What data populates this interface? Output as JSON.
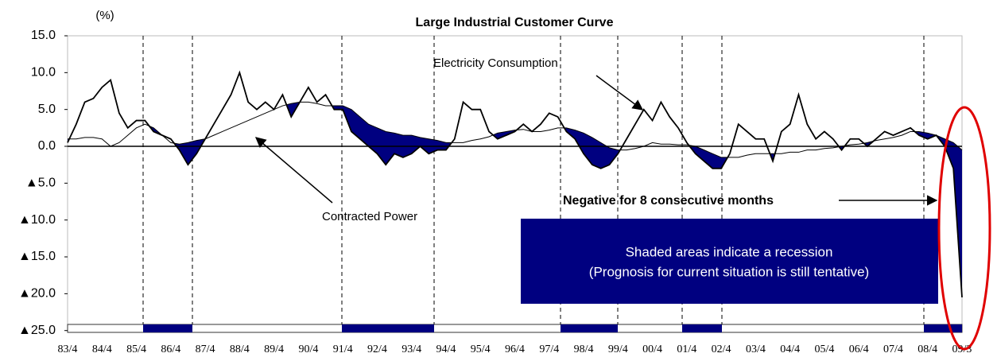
{
  "chart_data": {
    "type": "line",
    "title": "Large Industrial Customer Curve",
    "unit_label": "(%)",
    "categories": [
      "83/4",
      null,
      null,
      null,
      "84/4",
      null,
      null,
      null,
      "85/4",
      null,
      null,
      null,
      "86/4",
      null,
      null,
      null,
      "87/4",
      null,
      null,
      null,
      "88/4",
      null,
      null,
      null,
      "89/4",
      null,
      null,
      null,
      "90/4",
      null,
      null,
      null,
      "91/4",
      null,
      null,
      null,
      "92/4",
      null,
      null,
      null,
      "93/4",
      null,
      null,
      null,
      "94/4",
      null,
      null,
      null,
      "95/4",
      null,
      null,
      null,
      "96/4",
      null,
      null,
      null,
      "97/4",
      null,
      null,
      null,
      "98/4",
      null,
      null,
      null,
      "99/4",
      null,
      null,
      null,
      "00/4",
      null,
      null,
      null,
      "01/4",
      null,
      null,
      null,
      "02/4",
      null,
      null,
      null,
      "03/4",
      null,
      null,
      null,
      "04/4",
      null,
      null,
      null,
      "05/4",
      null,
      null,
      null,
      "06/4",
      null,
      null,
      null,
      "07/4",
      null,
      null,
      null,
      "08/4",
      null,
      null,
      null,
      "09/3"
    ],
    "series": [
      {
        "name": "Electricity Consumption",
        "color": "#000000",
        "values": [
          0.5,
          3,
          6,
          6.5,
          8,
          9,
          4.5,
          2.5,
          3.5,
          3.5,
          2,
          1.5,
          1,
          -0.5,
          -2.5,
          -1,
          1,
          3,
          5,
          7,
          10,
          6,
          5,
          6,
          5,
          7,
          4,
          6,
          8,
          6,
          7,
          5,
          5,
          2,
          1,
          0,
          -1,
          -2.5,
          -1,
          -1.5,
          -1,
          0,
          -1,
          -0.5,
          -0.5,
          1,
          6,
          5,
          5,
          2,
          1,
          1.5,
          2,
          3,
          2,
          3,
          4.5,
          4,
          2,
          1,
          -1,
          -2.5,
          -3,
          -2.5,
          -1,
          1,
          3,
          5,
          3.5,
          6,
          4,
          2.5,
          0.5,
          -1,
          -2,
          -3,
          -3,
          -1,
          3,
          2,
          1,
          1,
          -2,
          2,
          3,
          7,
          3,
          1,
          2,
          1,
          -0.5,
          1,
          1,
          0,
          1,
          2,
          1.5,
          2,
          2.5,
          1.5,
          1,
          1.5,
          0,
          -3,
          -20.5
        ]
      },
      {
        "name": "Contracted Power",
        "color": "#000000",
        "values": [
          1,
          1,
          1.2,
          1.2,
          1,
          0,
          0.5,
          1.5,
          2.5,
          3,
          2.5,
          1.5,
          0.5,
          0.3,
          0.5,
          0.8,
          1,
          1.5,
          2,
          2.5,
          3,
          3.5,
          4,
          4.5,
          5,
          5.5,
          5.8,
          6,
          6,
          5.8,
          5.5,
          5.5,
          5.5,
          5,
          4,
          3,
          2.5,
          2,
          1.8,
          1.5,
          1.5,
          1.2,
          1,
          0.8,
          0.5,
          0.5,
          0.5,
          0.8,
          1,
          1.3,
          1.8,
          2,
          2.2,
          2.3,
          2,
          2,
          2.2,
          2.5,
          2.5,
          2.2,
          1.8,
          1.2,
          0.5,
          -0.2,
          -0.5,
          -0.5,
          -0.3,
          0,
          0.5,
          0.3,
          0.3,
          0.2,
          0.2,
          0,
          -0.5,
          -1,
          -1.5,
          -1.5,
          -1.5,
          -1.2,
          -1,
          -1,
          -1,
          -1,
          -0.8,
          -0.8,
          -0.5,
          -0.5,
          -0.3,
          -0.2,
          0,
          0.2,
          0.3,
          0.5,
          0.8,
          1,
          1.2,
          1.5,
          2,
          2,
          1.8,
          1.5,
          1,
          0.5,
          -0.5
        ]
      }
    ],
    "shade_color": "#000080",
    "ylim": [
      -25,
      15
    ],
    "yticks": [
      {
        "value": 15,
        "label": "15.0"
      },
      {
        "value": 10,
        "label": "10.0"
      },
      {
        "value": 5,
        "label": "5.0"
      },
      {
        "value": 0,
        "label": "0.0"
      },
      {
        "value": -5,
        "label": "▲5.0"
      },
      {
        "value": -10,
        "label": "▲10.0"
      },
      {
        "value": -15,
        "label": "▲15.0"
      },
      {
        "value": -20,
        "label": "▲20.0"
      },
      {
        "value": -25,
        "label": "▲25.0"
      }
    ],
    "annotations": [
      "Negative for 8 consecutive months",
      "Shaded areas indicate a recession",
      "(Prognosis for current situation is still tentative)"
    ]
  }
}
